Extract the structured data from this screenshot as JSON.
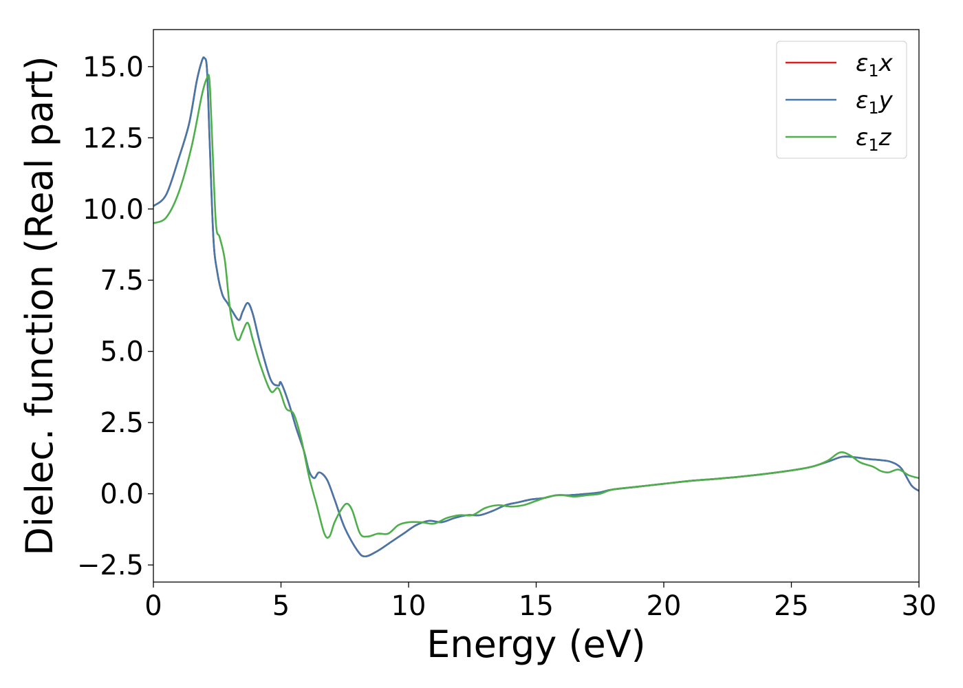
{
  "chart_data": {
    "type": "line",
    "xlabel": "Energy (eV)",
    "ylabel": "Dielec. function (Real part)",
    "xlim": [
      0,
      30
    ],
    "ylim": [
      -3.1,
      16.3
    ],
    "xticks": [
      0,
      5,
      10,
      15,
      20,
      25,
      30
    ],
    "xtick_labels": [
      "0",
      "5",
      "10",
      "15",
      "20",
      "25",
      "30"
    ],
    "yticks": [
      -2.5,
      0.0,
      2.5,
      5.0,
      7.5,
      10.0,
      12.5,
      15.0
    ],
    "ytick_labels": [
      "−2.5",
      "0.0",
      "2.5",
      "5.0",
      "7.5",
      "10.0",
      "12.5",
      "15.0"
    ],
    "grid": false,
    "legend_position": "top-right",
    "series": [
      {
        "name": "ε1x",
        "legend": {
          "base": "ε",
          "sub": "1",
          "suffix": "x"
        },
        "color": "#e41a1c",
        "x": [
          0,
          0.5,
          1.0,
          1.4,
          1.7,
          1.9,
          2.0,
          2.1,
          2.2,
          2.35,
          2.5,
          2.7,
          2.9,
          3.1,
          3.35,
          3.5,
          3.7,
          3.9,
          4.2,
          4.6,
          4.9,
          5.0,
          5.3,
          5.6,
          5.9,
          6.1,
          6.3,
          6.5,
          6.8,
          7.1,
          7.5,
          8.0,
          8.3,
          8.8,
          9.3,
          9.8,
          10.3,
          10.8,
          11.3,
          11.8,
          12.3,
          12.8,
          13.3,
          13.8,
          14.3,
          14.8,
          15.3,
          15.8,
          16.3,
          17.0,
          17.5,
          18.0,
          19.0,
          20.0,
          21.0,
          22.0,
          23.0,
          24.0,
          25.0,
          25.8,
          26.5,
          27.0,
          27.5,
          28.0,
          28.5,
          28.9,
          29.3,
          29.7,
          30.0
        ],
        "y": [
          10.1,
          10.5,
          11.8,
          13.0,
          14.5,
          15.2,
          15.3,
          14.9,
          12.5,
          9.0,
          7.8,
          7.0,
          6.7,
          6.4,
          6.1,
          6.4,
          6.7,
          6.3,
          5.2,
          4.0,
          3.8,
          3.9,
          3.2,
          2.3,
          1.5,
          0.8,
          0.55,
          0.75,
          0.5,
          -0.2,
          -1.2,
          -2.0,
          -2.2,
          -2.0,
          -1.7,
          -1.4,
          -1.1,
          -0.95,
          -1.0,
          -0.85,
          -0.75,
          -0.75,
          -0.6,
          -0.4,
          -0.3,
          -0.2,
          -0.15,
          -0.05,
          -0.05,
          0.0,
          0.05,
          0.15,
          0.25,
          0.35,
          0.45,
          0.52,
          0.6,
          0.7,
          0.82,
          0.95,
          1.15,
          1.3,
          1.28,
          1.22,
          1.18,
          1.12,
          0.9,
          0.3,
          0.1
        ]
      },
      {
        "name": "ε1y",
        "legend": {
          "base": "ε",
          "sub": "1",
          "suffix": "y"
        },
        "color": "#4477aa",
        "x": [
          0,
          0.5,
          1.0,
          1.4,
          1.7,
          1.9,
          2.0,
          2.1,
          2.2,
          2.35,
          2.5,
          2.7,
          2.9,
          3.1,
          3.35,
          3.5,
          3.7,
          3.9,
          4.2,
          4.6,
          4.9,
          5.0,
          5.3,
          5.6,
          5.9,
          6.1,
          6.3,
          6.5,
          6.8,
          7.1,
          7.5,
          8.0,
          8.3,
          8.8,
          9.3,
          9.8,
          10.3,
          10.8,
          11.3,
          11.8,
          12.3,
          12.8,
          13.3,
          13.8,
          14.3,
          14.8,
          15.3,
          15.8,
          16.3,
          17.0,
          17.5,
          18.0,
          19.0,
          20.0,
          21.0,
          22.0,
          23.0,
          24.0,
          25.0,
          25.8,
          26.5,
          27.0,
          27.5,
          28.0,
          28.5,
          28.9,
          29.3,
          29.7,
          30.0
        ],
        "y": [
          10.1,
          10.5,
          11.8,
          13.0,
          14.5,
          15.2,
          15.3,
          14.9,
          12.5,
          9.0,
          7.8,
          7.0,
          6.7,
          6.4,
          6.1,
          6.4,
          6.7,
          6.3,
          5.2,
          4.0,
          3.8,
          3.9,
          3.2,
          2.3,
          1.5,
          0.8,
          0.55,
          0.75,
          0.5,
          -0.2,
          -1.2,
          -2.0,
          -2.2,
          -2.0,
          -1.7,
          -1.4,
          -1.1,
          -0.95,
          -1.0,
          -0.85,
          -0.75,
          -0.75,
          -0.6,
          -0.4,
          -0.3,
          -0.2,
          -0.15,
          -0.05,
          -0.05,
          0.0,
          0.05,
          0.15,
          0.25,
          0.35,
          0.45,
          0.52,
          0.6,
          0.7,
          0.82,
          0.95,
          1.15,
          1.3,
          1.28,
          1.22,
          1.18,
          1.12,
          0.9,
          0.3,
          0.1
        ]
      },
      {
        "name": "ε1z",
        "legend": {
          "base": "ε",
          "sub": "1",
          "suffix": "z"
        },
        "color": "#4daf4a",
        "x": [
          0,
          0.5,
          1.0,
          1.5,
          1.9,
          2.1,
          2.2,
          2.3,
          2.45,
          2.6,
          2.8,
          3.0,
          3.2,
          3.35,
          3.5,
          3.7,
          3.9,
          4.2,
          4.6,
          4.9,
          5.2,
          5.5,
          5.8,
          6.1,
          6.4,
          6.7,
          6.9,
          7.1,
          7.4,
          7.6,
          7.8,
          8.1,
          8.4,
          8.8,
          9.2,
          9.6,
          10.0,
          10.5,
          11.0,
          11.5,
          12.0,
          12.5,
          13.0,
          13.5,
          14.0,
          14.5,
          15.0,
          15.5,
          16.0,
          16.5,
          17.0,
          17.5,
          18.0,
          19.0,
          20.0,
          21.0,
          22.0,
          23.0,
          24.0,
          25.0,
          25.8,
          26.4,
          26.9,
          27.3,
          27.7,
          28.2,
          28.5,
          28.8,
          29.2,
          29.6,
          30.0
        ],
        "y": [
          9.5,
          9.7,
          10.6,
          12.2,
          14.0,
          14.6,
          14.5,
          12.5,
          9.5,
          9.0,
          8.2,
          6.5,
          5.6,
          5.4,
          5.7,
          6.0,
          5.4,
          4.5,
          3.6,
          3.7,
          3.0,
          2.8,
          1.9,
          0.6,
          -0.4,
          -1.4,
          -1.5,
          -1.0,
          -0.5,
          -0.35,
          -0.6,
          -1.4,
          -1.5,
          -1.4,
          -1.4,
          -1.1,
          -1.0,
          -1.0,
          -1.05,
          -0.85,
          -0.75,
          -0.75,
          -0.5,
          -0.4,
          -0.45,
          -0.4,
          -0.25,
          -0.1,
          -0.05,
          -0.1,
          -0.05,
          0.0,
          0.15,
          0.25,
          0.35,
          0.45,
          0.52,
          0.6,
          0.7,
          0.82,
          0.95,
          1.15,
          1.45,
          1.35,
          1.1,
          0.95,
          0.8,
          0.75,
          0.85,
          0.65,
          0.55
        ]
      }
    ]
  }
}
